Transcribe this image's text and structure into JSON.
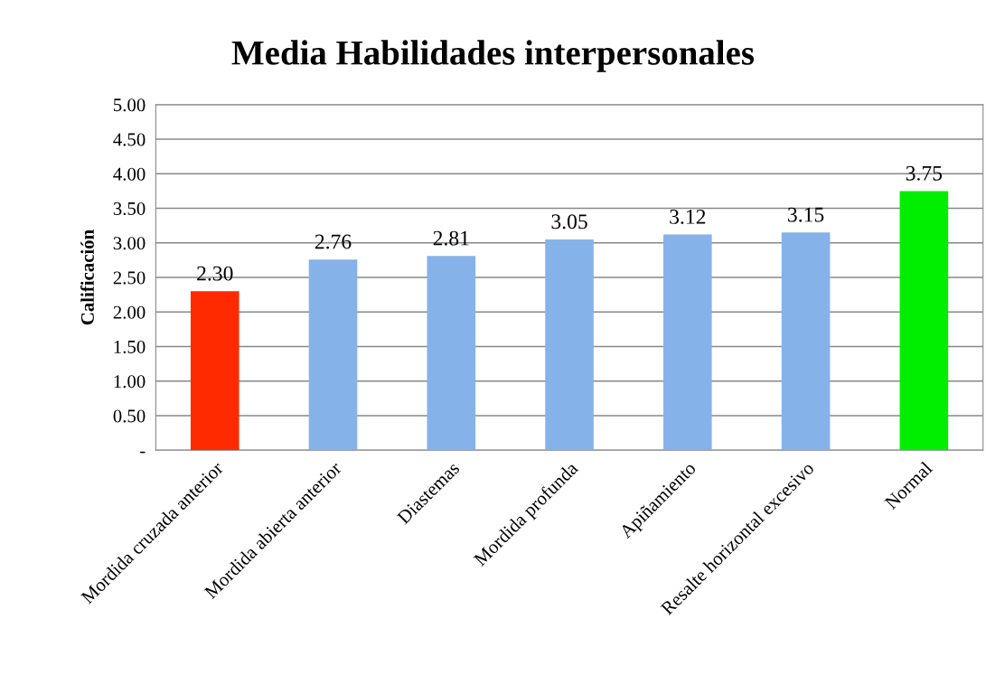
{
  "chart_data": {
    "type": "bar",
    "title": "Media Habilidades interpersonales",
    "ylabel": "Calificación",
    "categories": [
      "Mordida cruzada anterior",
      "Mordida abierta anterior",
      "Diastemas",
      "Mordida profunda",
      "Apiñamiento",
      "Resalte horizontal excesivo",
      "Normal"
    ],
    "values": [
      2.3,
      2.76,
      2.81,
      3.05,
      3.12,
      3.15,
      3.75
    ],
    "value_labels": [
      "2.30",
      "2.76",
      "2.81",
      "3.05",
      "3.12",
      "3.15",
      "3.75"
    ],
    "colors": [
      "#ff2a00",
      "#86b2ea",
      "#86b2ea",
      "#86b2ea",
      "#86b2ea",
      "#86b2ea",
      "#00ee00"
    ],
    "ylim": [
      0,
      5
    ],
    "yticks": [
      {
        "value": 0,
        "label": "-"
      },
      {
        "value": 0.5,
        "label": "0.50"
      },
      {
        "value": 1,
        "label": "1.00"
      },
      {
        "value": 1.5,
        "label": "1.50"
      },
      {
        "value": 2,
        "label": "2.00"
      },
      {
        "value": 2.5,
        "label": "2.50"
      },
      {
        "value": 3,
        "label": "3.00"
      },
      {
        "value": 3.5,
        "label": "3.50"
      },
      {
        "value": 4,
        "label": "4.00"
      },
      {
        "value": 4.5,
        "label": "4.50"
      },
      {
        "value": 5,
        "label": "5.00"
      }
    ],
    "grid": "y",
    "legend": false
  }
}
